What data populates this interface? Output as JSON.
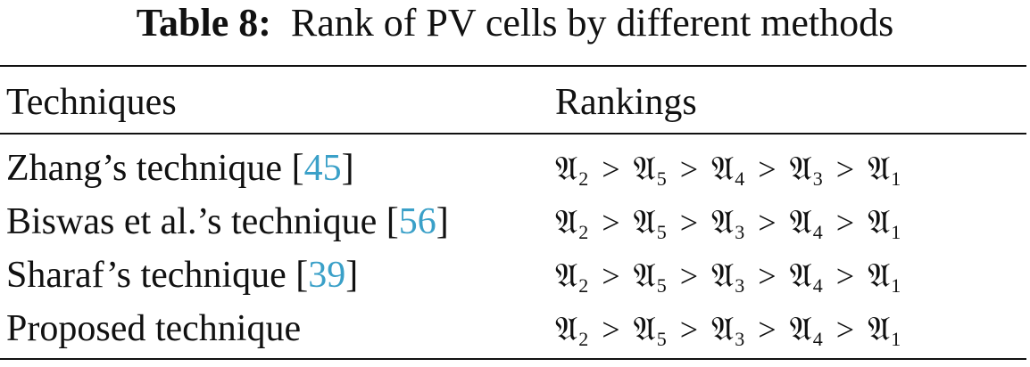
{
  "caption": {
    "label": "Table 8:",
    "title": "Rank of PV cells by different methods"
  },
  "table": {
    "headers": [
      "Techniques",
      "Rankings"
    ],
    "rows": [
      {
        "technique": "Zhang’s technique",
        "ref": "45",
        "ranking": [
          "𝔄₂",
          "𝔄₅",
          "𝔄₄",
          "𝔄₃",
          "𝔄₁"
        ],
        "ranking_text": "𝔄2 > 𝔄5 > 𝔄4 > 𝔄3 > 𝔄1"
      },
      {
        "technique": "Biswas et al.’s technique",
        "ref": "56",
        "ranking_text": "𝔄2 > 𝔄5 > 𝔄3 > 𝔄4 > 𝔄1"
      },
      {
        "technique": "Sharaf’s technique",
        "ref": "39",
        "ranking_text": "𝔄2 > 𝔄5 > 𝔄3 > 𝔄4 > 𝔄1"
      },
      {
        "technique": "Proposed technique",
        "ref": "",
        "ranking_text": "𝔄2 > 𝔄5 > 𝔄3 > 𝔄4 > 𝔄1"
      }
    ]
  },
  "colors": {
    "text": "#111111",
    "reference_link": "#3aa0c8"
  }
}
